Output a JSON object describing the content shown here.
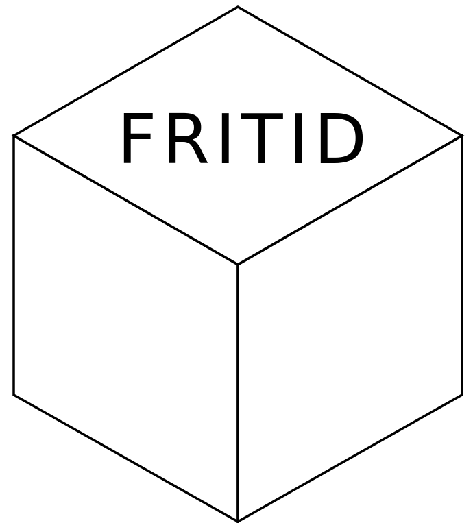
{
  "diagram": {
    "label": "FRITID",
    "colors": {
      "stroke": "#000000",
      "text": "#000000",
      "background": "#ffffff"
    }
  }
}
